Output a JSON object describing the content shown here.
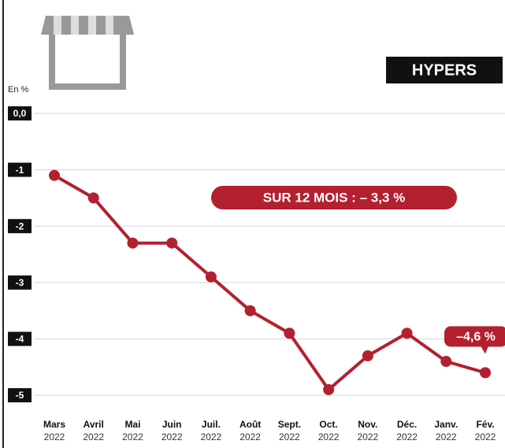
{
  "chart_data": {
    "type": "line",
    "title": "HYPERS",
    "y_label": "En %",
    "annotation": "SUR 12 MOIS : – 3,3 %",
    "categories": [
      "Mars",
      "Avril",
      "Mai",
      "Juin",
      "Juil.",
      "Août",
      "Sept.",
      "Oct.",
      "Nov.",
      "Déc.",
      "Janv.",
      "Fév."
    ],
    "category_years": [
      "2022",
      "2022",
      "2022",
      "2022",
      "2022",
      "2022",
      "2022",
      "2022",
      "2022",
      "2022",
      "2022",
      "2022"
    ],
    "series": [
      {
        "name": "Hypers",
        "color": "#b3202f",
        "values": [
          -1.1,
          -1.5,
          -2.3,
          -2.3,
          -2.9,
          -3.5,
          -3.9,
          -4.9,
          -4.3,
          -3.9,
          -4.4,
          -4.6
        ],
        "value_labels": [
          null,
          null,
          null,
          null,
          null,
          null,
          null,
          null,
          null,
          null,
          null,
          "–4,6 %"
        ]
      }
    ],
    "ylim": [
      -5.3,
      0.2
    ],
    "yticks": [
      {
        "value": 0,
        "label": "0,0"
      },
      -1,
      -2,
      -3,
      -4,
      -5
    ],
    "grid": true
  }
}
